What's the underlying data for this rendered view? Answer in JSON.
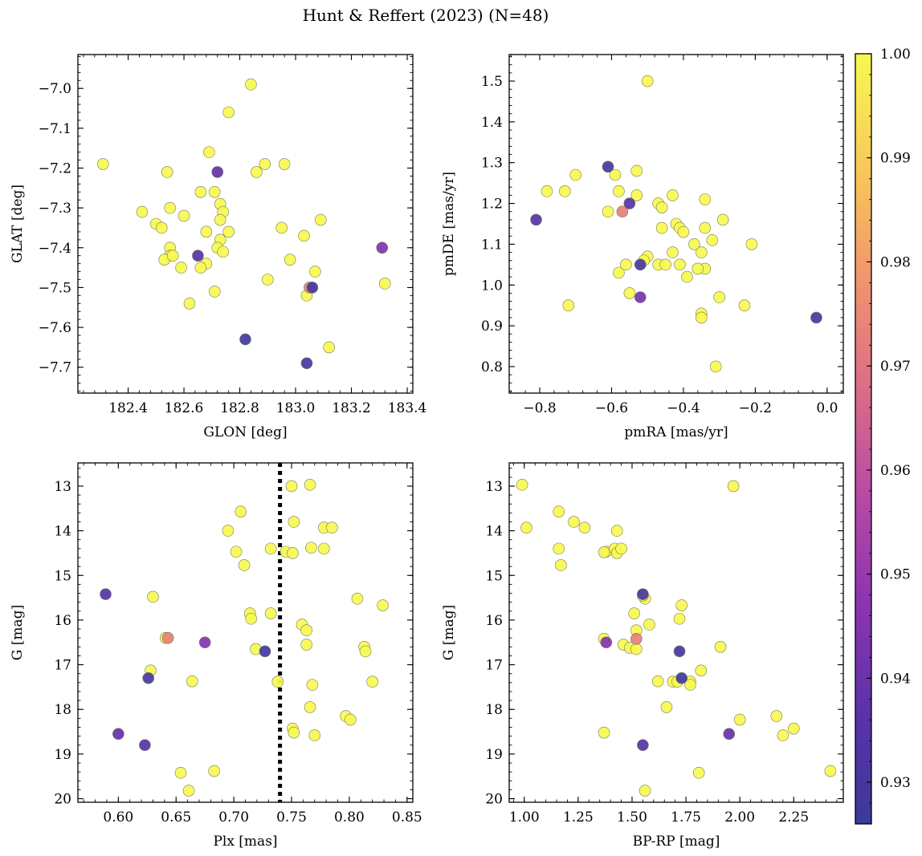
{
  "figure": {
    "title": "Hunt & Reffert (2023) (N=48)"
  },
  "colorbar": {
    "min": 0.926,
    "max": 1.0,
    "ticks": [
      0.93,
      0.94,
      0.95,
      0.96,
      0.97,
      0.98,
      0.99,
      1.0
    ],
    "tick_labels": [
      "0.93",
      "0.94",
      "0.95",
      "0.96",
      "0.97",
      "0.98",
      "0.99",
      "1.00"
    ],
    "colormap": "plasma"
  },
  "chart_data": [
    {
      "type": "scatter",
      "panel": "top-left",
      "xlabel": "GLON [deg]",
      "ylabel": "GLAT [deg]",
      "xlim": [
        182.22,
        183.42
      ],
      "ylim": [
        -7.765,
        -6.915
      ],
      "xticks": [
        182.4,
        182.6,
        182.8,
        183.0,
        183.2,
        183.4
      ],
      "xtick_labels": [
        "182.4",
        "182.6",
        "182.8",
        "183.0",
        "183.2",
        "183.4"
      ],
      "yticks": [
        -7.7,
        -7.6,
        -7.5,
        -7.4,
        -7.3,
        -7.2,
        -7.1,
        -7.0
      ],
      "ytick_labels": [
        "−7.7",
        "−7.6",
        "−7.5",
        "−7.4",
        "−7.3",
        "−7.2",
        "−7.1",
        "−7.0"
      ],
      "x": [
        182.84,
        182.76,
        182.69,
        182.31,
        182.54,
        182.86,
        182.89,
        182.96,
        182.73,
        182.71,
        182.66,
        182.45,
        182.55,
        182.6,
        182.5,
        182.52,
        182.74,
        182.73,
        182.76,
        182.95,
        183.09,
        182.68,
        182.73,
        182.55,
        182.72,
        182.74,
        182.55,
        182.53,
        182.56,
        182.68,
        182.59,
        182.66,
        182.62,
        182.71,
        182.9,
        182.98,
        183.07,
        183.03,
        183.32,
        182.65,
        183.31,
        183.05,
        183.04,
        183.12,
        183.06,
        182.82,
        183.04,
        182.72
      ],
      "y": [
        -6.99,
        -7.06,
        -7.16,
        -7.19,
        -7.21,
        -7.21,
        -7.19,
        -7.19,
        -7.29,
        -7.26,
        -7.26,
        -7.31,
        -7.3,
        -7.32,
        -7.34,
        -7.35,
        -7.31,
        -7.33,
        -7.36,
        -7.35,
        -7.33,
        -7.36,
        -7.38,
        -7.4,
        -7.4,
        -7.41,
        -7.42,
        -7.43,
        -7.42,
        -7.44,
        -7.45,
        -7.45,
        -7.54,
        -7.51,
        -7.48,
        -7.43,
        -7.46,
        -7.37,
        -7.49,
        -7.42,
        -7.4,
        -7.5,
        -7.52,
        -7.65,
        -7.5,
        -7.63,
        -7.69,
        -7.21
      ],
      "c": [
        1.0,
        1.0,
        1.0,
        1.0,
        1.0,
        1.0,
        1.0,
        1.0,
        1.0,
        1.0,
        1.0,
        1.0,
        1.0,
        1.0,
        1.0,
        1.0,
        1.0,
        1.0,
        1.0,
        1.0,
        1.0,
        1.0,
        1.0,
        1.0,
        1.0,
        1.0,
        1.0,
        1.0,
        1.0,
        1.0,
        1.0,
        1.0,
        1.0,
        1.0,
        1.0,
        1.0,
        1.0,
        1.0,
        1.0,
        0.935,
        0.945,
        0.973,
        1.0,
        1.0,
        0.93,
        0.928,
        0.93,
        0.938
      ]
    },
    {
      "type": "scatter",
      "panel": "top-right",
      "xlabel": "pmRA [mas/yr]",
      "ylabel": "pmDE [mas/yr]",
      "xlim": [
        -0.885,
        0.045
      ],
      "ylim": [
        0.735,
        1.565
      ],
      "xticks": [
        -0.8,
        -0.6,
        -0.4,
        -0.2,
        0.0
      ],
      "xtick_labels": [
        "−0.8",
        "−0.6",
        "−0.4",
        "−0.2",
        "0.0"
      ],
      "yticks": [
        0.8,
        0.9,
        1.0,
        1.1,
        1.2,
        1.3,
        1.4,
        1.5
      ],
      "ytick_labels": [
        "0.8",
        "0.9",
        "1.0",
        "1.1",
        "1.2",
        "1.3",
        "1.4",
        "1.5"
      ],
      "x": [
        -0.5,
        -0.7,
        -0.78,
        -0.73,
        -0.59,
        -0.58,
        -0.61,
        -0.53,
        -0.53,
        -0.43,
        -0.47,
        -0.46,
        -0.34,
        -0.29,
        -0.21,
        -0.42,
        -0.41,
        -0.46,
        -0.4,
        -0.32,
        -0.34,
        -0.35,
        -0.43,
        -0.5,
        -0.37,
        -0.41,
        -0.51,
        -0.47,
        -0.45,
        -0.39,
        -0.34,
        -0.36,
        -0.58,
        -0.55,
        -0.72,
        -0.3,
        -0.23,
        -0.35,
        -0.35,
        -0.31,
        -0.56,
        -0.57,
        -0.61,
        -0.55,
        -0.81,
        -0.52,
        -0.52,
        -0.03
      ],
      "y": [
        1.5,
        1.27,
        1.23,
        1.23,
        1.27,
        1.23,
        1.18,
        1.22,
        1.28,
        1.22,
        1.2,
        1.19,
        1.21,
        1.16,
        1.1,
        1.15,
        1.14,
        1.14,
        1.13,
        1.11,
        1.14,
        1.08,
        1.08,
        1.07,
        1.1,
        1.05,
        1.06,
        1.05,
        1.05,
        1.02,
        1.04,
        1.04,
        1.03,
        0.98,
        0.95,
        0.97,
        0.95,
        0.93,
        0.92,
        0.8,
        1.05,
        1.18,
        1.29,
        1.2,
        1.16,
        1.05,
        0.97,
        0.92
      ],
      "c": [
        1.0,
        1.0,
        1.0,
        1.0,
        1.0,
        1.0,
        1.0,
        1.0,
        1.0,
        1.0,
        1.0,
        1.0,
        1.0,
        1.0,
        1.0,
        1.0,
        1.0,
        1.0,
        1.0,
        1.0,
        1.0,
        1.0,
        1.0,
        1.0,
        1.0,
        1.0,
        1.0,
        1.0,
        1.0,
        1.0,
        1.0,
        1.0,
        1.0,
        1.0,
        1.0,
        1.0,
        1.0,
        1.0,
        1.0,
        1.0,
        1.0,
        0.973,
        0.928,
        0.935,
        0.935,
        0.93,
        0.942,
        0.93
      ]
    },
    {
      "type": "scatter",
      "panel": "bottom-left",
      "xlabel": "Plx [mas]",
      "ylabel": "G [mag]",
      "xlim": [
        0.565,
        0.855
      ],
      "ylim": [
        20.08,
        12.48
      ],
      "y_inverted": true,
      "vline": 0.74,
      "xticks": [
        0.6,
        0.65,
        0.7,
        0.75,
        0.8,
        0.85
      ],
      "xtick_labels": [
        "0.60",
        "0.65",
        "0.70",
        "0.75",
        "0.80",
        "0.85"
      ],
      "yticks": [
        13,
        14,
        15,
        16,
        17,
        18,
        19,
        20
      ],
      "ytick_labels": [
        "13",
        "14",
        "15",
        "16",
        "17",
        "18",
        "19",
        "20"
      ],
      "x": [
        0.75,
        0.766,
        0.706,
        0.695,
        0.778,
        0.785,
        0.702,
        0.732,
        0.745,
        0.751,
        0.767,
        0.778,
        0.709,
        0.63,
        0.807,
        0.829,
        0.714,
        0.715,
        0.759,
        0.763,
        0.732,
        0.763,
        0.641,
        0.813,
        0.719,
        0.814,
        0.628,
        0.664,
        0.738,
        0.768,
        0.82,
        0.766,
        0.797,
        0.801,
        0.751,
        0.752,
        0.77,
        0.683,
        0.654,
        0.661,
        0.589,
        0.643,
        0.675,
        0.626,
        0.727,
        0.6,
        0.623,
        0.752
      ],
      "y": [
        13.0,
        12.97,
        13.57,
        14.0,
        13.93,
        13.93,
        14.47,
        14.4,
        14.47,
        14.5,
        14.38,
        14.4,
        14.77,
        15.48,
        15.52,
        15.67,
        15.85,
        15.97,
        16.1,
        16.23,
        15.85,
        16.55,
        16.4,
        16.6,
        16.65,
        16.7,
        17.13,
        17.37,
        17.38,
        17.45,
        17.38,
        17.95,
        18.15,
        18.23,
        18.43,
        18.52,
        18.58,
        19.38,
        19.42,
        19.82,
        15.42,
        16.4,
        16.5,
        17.3,
        16.7,
        18.55,
        18.8,
        13.8
      ],
      "c": [
        1.0,
        1.0,
        1.0,
        1.0,
        1.0,
        1.0,
        1.0,
        1.0,
        1.0,
        1.0,
        1.0,
        1.0,
        1.0,
        1.0,
        1.0,
        1.0,
        1.0,
        1.0,
        1.0,
        1.0,
        1.0,
        1.0,
        1.0,
        1.0,
        1.0,
        1.0,
        1.0,
        1.0,
        1.0,
        1.0,
        1.0,
        1.0,
        1.0,
        1.0,
        1.0,
        1.0,
        1.0,
        1.0,
        1.0,
        1.0,
        0.935,
        0.973,
        0.945,
        0.93,
        0.928,
        0.938,
        0.935,
        1.0
      ]
    },
    {
      "type": "scatter",
      "panel": "bottom-right",
      "xlabel": "BP-RP [mag]",
      "ylabel": "G [mag]",
      "xlim": [
        0.93,
        2.48
      ],
      "ylim": [
        20.08,
        12.48
      ],
      "y_inverted": true,
      "xticks": [
        1.0,
        1.25,
        1.5,
        1.75,
        2.0,
        2.25
      ],
      "xtick_labels": [
        "1.00",
        "1.25",
        "1.50",
        "1.75",
        "2.00",
        "2.25"
      ],
      "yticks": [
        13,
        14,
        15,
        16,
        17,
        18,
        19,
        20
      ],
      "ytick_labels": [
        "13",
        "14",
        "15",
        "16",
        "17",
        "18",
        "19",
        "20"
      ],
      "x": [
        0.99,
        1.97,
        1.16,
        1.01,
        1.23,
        1.28,
        1.16,
        1.43,
        1.38,
        1.37,
        1.42,
        1.43,
        1.45,
        1.17,
        1.56,
        1.73,
        1.51,
        1.72,
        1.58,
        1.52,
        1.37,
        1.46,
        1.49,
        1.52,
        1.91,
        1.82,
        1.62,
        1.69,
        1.71,
        1.77,
        1.66,
        2.17,
        2.0,
        2.25,
        1.37,
        2.2,
        1.56,
        2.42,
        1.81,
        1.55,
        1.52,
        1.38,
        1.73,
        1.72,
        1.55,
        1.95,
        1.55,
        1.77
      ],
      "y": [
        12.97,
        13.0,
        13.57,
        13.93,
        13.8,
        13.93,
        14.4,
        14.0,
        14.47,
        14.48,
        14.4,
        14.5,
        14.4,
        14.77,
        15.52,
        15.67,
        15.85,
        15.97,
        16.1,
        16.23,
        16.42,
        16.55,
        16.62,
        16.65,
        16.6,
        17.13,
        17.37,
        17.38,
        17.38,
        17.38,
        17.95,
        18.15,
        18.23,
        18.43,
        18.52,
        18.58,
        19.82,
        19.38,
        19.42,
        15.45,
        16.42,
        16.5,
        17.3,
        16.7,
        15.42,
        18.55,
        18.8,
        17.45
      ],
      "c": [
        1.0,
        1.0,
        1.0,
        1.0,
        1.0,
        1.0,
        1.0,
        1.0,
        1.0,
        1.0,
        1.0,
        1.0,
        1.0,
        1.0,
        1.0,
        1.0,
        1.0,
        1.0,
        1.0,
        1.0,
        1.0,
        1.0,
        1.0,
        1.0,
        1.0,
        1.0,
        1.0,
        1.0,
        1.0,
        1.0,
        1.0,
        1.0,
        1.0,
        1.0,
        1.0,
        1.0,
        1.0,
        1.0,
        1.0,
        1.0,
        0.973,
        0.945,
        0.928,
        0.93,
        0.93,
        0.938,
        0.935,
        1.0
      ]
    }
  ]
}
